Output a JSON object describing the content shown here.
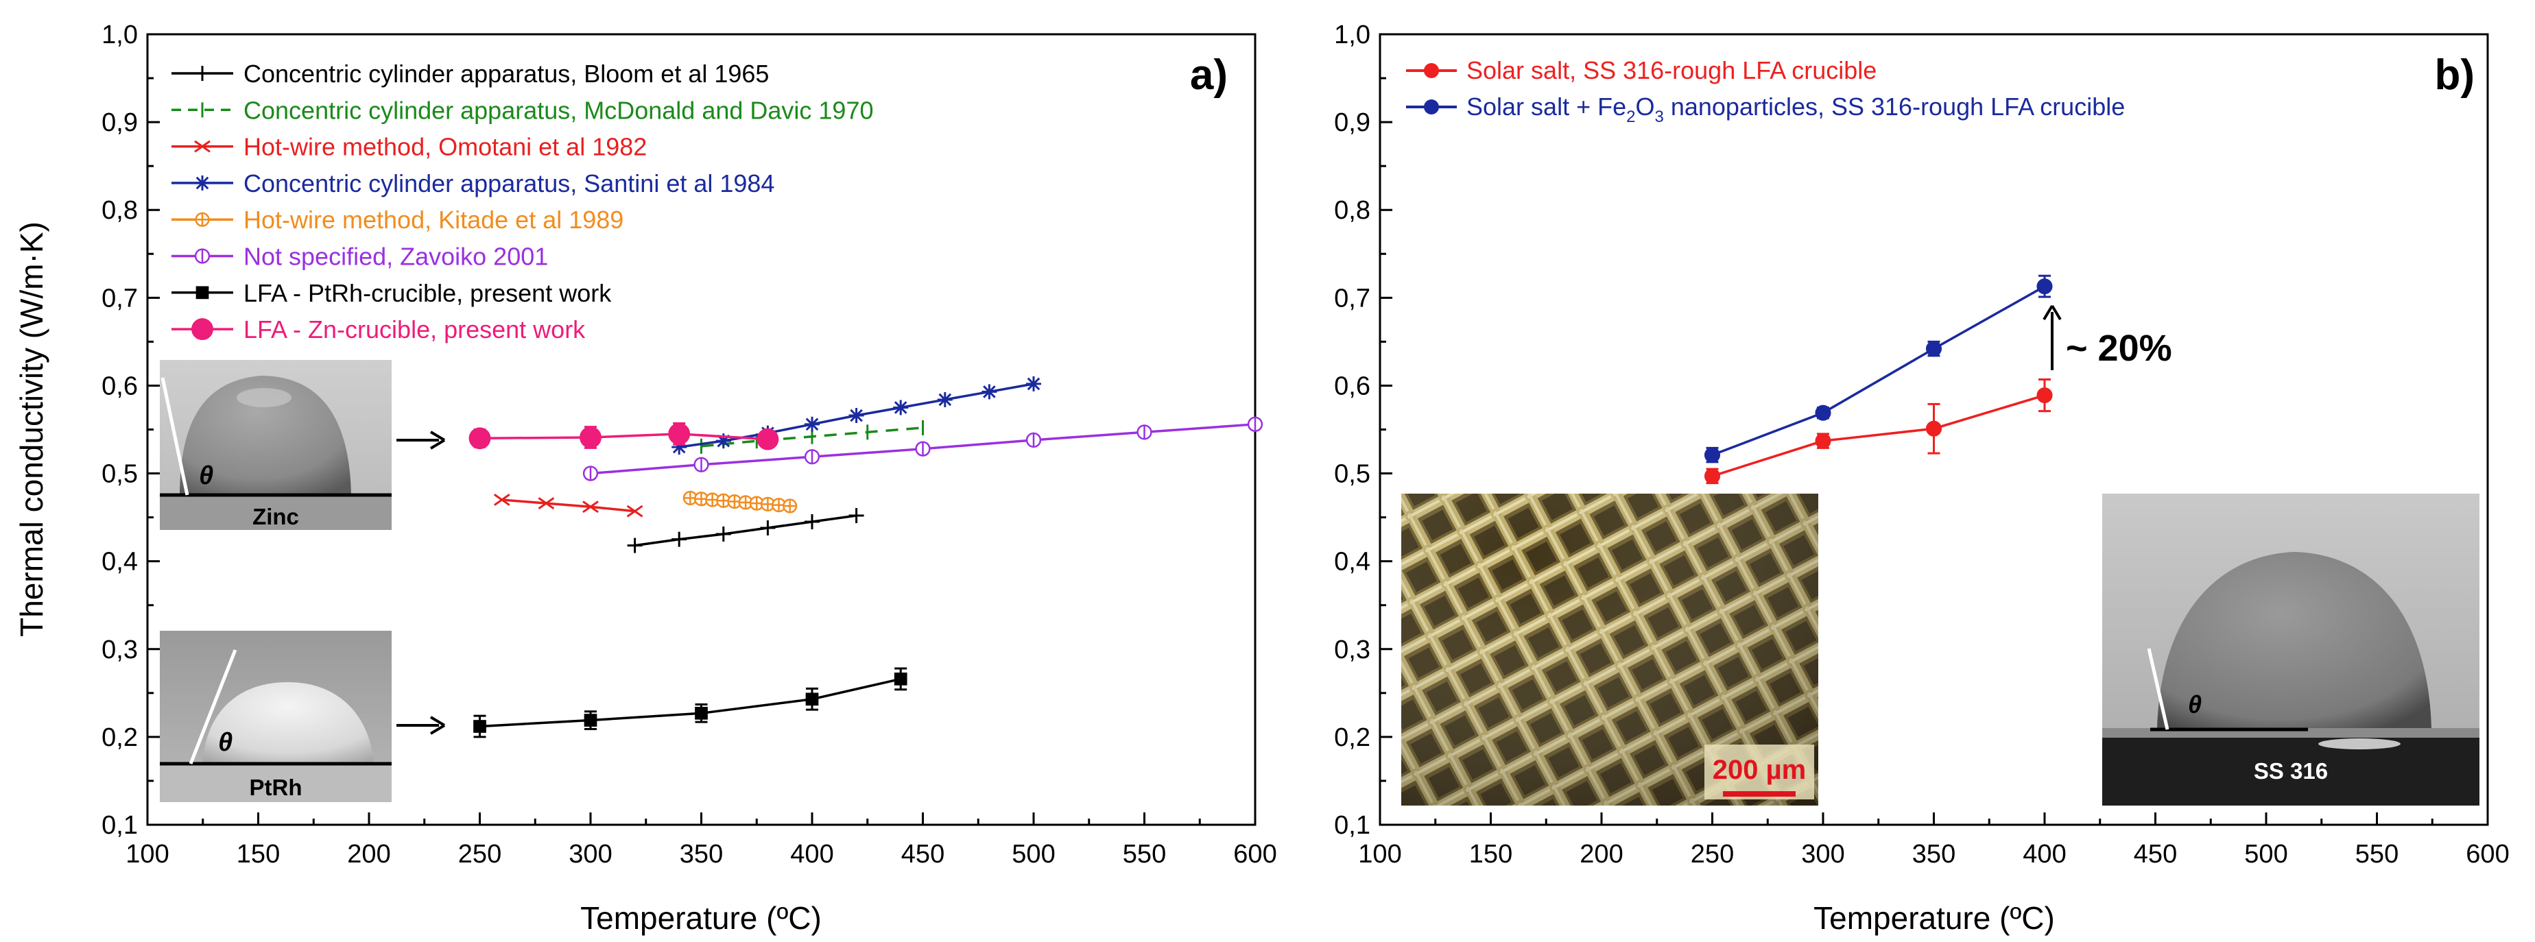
{
  "chart_data": [
    {
      "type": "line",
      "panel_label": "a)",
      "xlabel": "Temperature (ºC)",
      "ylabel": "Thermal conductivity (W/m·K)",
      "xlim": [
        100,
        600
      ],
      "ylim": [
        0.1,
        1.0
      ],
      "xticks": [
        "100",
        "150",
        "200",
        "250",
        "300",
        "350",
        "400",
        "450",
        "500",
        "550",
        "600"
      ],
      "yticks": [
        "0,1",
        "0,2",
        "0,3",
        "0,4",
        "0,5",
        "0,6",
        "0,7",
        "0,8",
        "0,9",
        "1,0"
      ],
      "series": [
        {
          "name": "Concentric cylinder apparatus, Bloom et al 1965",
          "color": "#000000",
          "marker": "plus",
          "x": [
            320,
            340,
            360,
            380,
            400,
            420
          ],
          "y": [
            0.418,
            0.425,
            0.431,
            0.438,
            0.445,
            0.452
          ]
        },
        {
          "name": "Concentric cylinder apparatus, McDonald and Davic 1970",
          "color": "#1a8a1a",
          "marker": "bar",
          "dash": true,
          "x": [
            350,
            375,
            400,
            425,
            450
          ],
          "y": [
            0.531,
            0.537,
            0.542,
            0.547,
            0.552
          ]
        },
        {
          "name": "Hot-wire method, Omotani et al 1982",
          "color": "#e82020",
          "marker": "x",
          "x": [
            260,
            280,
            300,
            320
          ],
          "y": [
            0.47,
            0.466,
            0.462,
            0.457
          ]
        },
        {
          "name": "Concentric cylinder apparatus, Santini et al 1984",
          "color": "#1a2a9e",
          "marker": "star",
          "x": [
            340,
            360,
            380,
            400,
            420,
            440,
            460,
            480,
            500
          ],
          "y": [
            0.53,
            0.537,
            0.546,
            0.556,
            0.566,
            0.575,
            0.584,
            0.593,
            0.602
          ]
        },
        {
          "name": "Hot-wire method, Kitade et al 1989",
          "color": "#f28c1e",
          "marker": "circplus",
          "x": [
            345,
            350,
            355,
            360,
            365,
            370,
            375,
            380,
            385,
            390
          ],
          "y": [
            0.472,
            0.471,
            0.47,
            0.469,
            0.468,
            0.467,
            0.466,
            0.465,
            0.464,
            0.463
          ]
        },
        {
          "name": "Not specified, Zavoiko 2001",
          "color": "#9b30e0",
          "marker": "circbar",
          "x": [
            300,
            350,
            400,
            450,
            500,
            550,
            600
          ],
          "y": [
            0.5,
            0.51,
            0.519,
            0.528,
            0.538,
            0.547,
            0.556
          ]
        },
        {
          "name": "LFA - PtRh-crucible, present work",
          "color": "#000000",
          "marker": "square",
          "x": [
            250,
            300,
            350,
            400,
            440
          ],
          "y": [
            0.212,
            0.219,
            0.227,
            0.243,
            0.266
          ],
          "err": [
            0.012,
            0.01,
            0.01,
            0.012,
            0.012
          ]
        },
        {
          "name": "LFA - Zn-crucible, present work",
          "color": "#ee1c7a",
          "marker": "bigcircle",
          "x": [
            250,
            300,
            340,
            380
          ],
          "y": [
            0.54,
            0.541,
            0.545,
            0.539
          ],
          "err": [
            0.01,
            0.012,
            0.012,
            0.008
          ]
        }
      ],
      "insets": [
        {
          "label": "Zinc",
          "symbol": "θ"
        },
        {
          "label": "PtRh",
          "symbol": "θ"
        }
      ]
    },
    {
      "type": "line",
      "panel_label": "b)",
      "xlabel": "Temperature (ºC)",
      "ylabel": "",
      "xlim": [
        100,
        600
      ],
      "ylim": [
        0.1,
        1.0
      ],
      "xticks": [
        "100",
        "150",
        "200",
        "250",
        "300",
        "350",
        "400",
        "450",
        "500",
        "550",
        "600"
      ],
      "yticks": [
        "0,1",
        "0,2",
        "0,3",
        "0,4",
        "0,5",
        "0,6",
        "0,7",
        "0,8",
        "0,9",
        "1,0"
      ],
      "series": [
        {
          "name": "Solar salt, SS 316-rough LFA crucible",
          "color": "#ee2020",
          "marker": "circle",
          "x": [
            250,
            300,
            350,
            400
          ],
          "y": [
            0.497,
            0.537,
            0.551,
            0.589
          ],
          "err": [
            0.008,
            0.008,
            0.028,
            0.018
          ]
        },
        {
          "name": "Solar salt + Fe2O3 nanoparticles, SS 316-rough LFA crucible",
          "color": "#1a2a9e",
          "marker": "circle",
          "x": [
            250,
            300,
            350,
            400
          ],
          "y": [
            0.521,
            0.569,
            0.642,
            0.713
          ],
          "err": [
            0.008,
            0.006,
            0.008,
            0.012
          ]
        }
      ],
      "annotation": "~ 20%",
      "legend_parts": {
        "prefix": "Solar salt + Fe",
        "sub1": "2",
        "mid": "O",
        "sub2": "3",
        "suffix": " nanoparticles, SS 316-rough LFA crucible"
      },
      "insets": [
        {
          "label": "200 µm"
        },
        {
          "label": "SS 316",
          "symbol": "θ"
        }
      ]
    }
  ]
}
